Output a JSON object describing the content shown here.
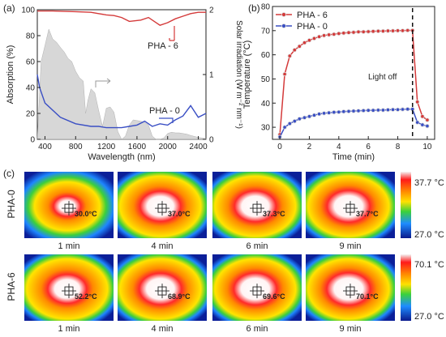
{
  "chart_data": [
    {
      "type": "line",
      "panel": "(a)",
      "xlabel": "Wavelength (nm)",
      "ylabel": "Absorption (%)",
      "ylabel_right": "Solar irradiation (W m⁻² nm⁻¹)",
      "xlim": [
        300,
        2500
      ],
      "ylim": [
        0,
        100
      ],
      "ylim_right": [
        0,
        2
      ],
      "x_ticks": [
        "400",
        "800",
        "1200",
        "1600",
        "2000",
        "2400"
      ],
      "y_ticks": [
        "0",
        "20",
        "40",
        "60",
        "80",
        "100"
      ],
      "y_ticks_right": [
        "0",
        "1",
        "2"
      ],
      "series": [
        {
          "name": "PHA - 6",
          "color": "#d43a3a",
          "x": [
            300,
            500,
            800,
            1000,
            1100,
            1200,
            1300,
            1400,
            1500,
            1650,
            1750,
            1900,
            2000,
            2100,
            2200,
            2300,
            2400,
            2500
          ],
          "y": [
            99,
            99,
            98.5,
            98,
            97,
            96,
            95.5,
            94,
            91,
            92,
            94,
            88,
            90,
            93,
            95,
            97,
            98,
            98
          ]
        },
        {
          "name": "PHA - 0",
          "color": "#3a4fc4",
          "x": [
            300,
            330,
            400,
            600,
            800,
            1000,
            1100,
            1200,
            1400,
            1500,
            1600,
            1700,
            1800,
            1900,
            2000,
            2100,
            2200,
            2300,
            2400,
            2500
          ],
          "y": [
            50,
            40,
            28,
            17,
            12,
            10,
            10,
            9,
            9,
            10,
            11,
            14,
            10,
            12,
            11,
            15,
            18,
            26,
            17,
            20
          ]
        },
        {
          "name": "",
          "color": "#c9c9c9",
          "x": [
            300,
            350,
            400,
            450,
            500,
            550,
            600,
            650,
            700,
            750,
            800,
            850,
            900,
            930,
            960,
            1000,
            1050,
            1100,
            1150,
            1200,
            1250,
            1300,
            1350,
            1400,
            1450,
            1500,
            1550,
            1600,
            1650,
            1700,
            1750,
            1800,
            1850,
            1900,
            1950,
            2000,
            2050,
            2100,
            2150,
            2200,
            2250,
            2300,
            2400,
            2500
          ],
          "y": [
            0.0,
            1.2,
            1.45,
            1.7,
            1.55,
            1.5,
            1.42,
            1.35,
            1.25,
            1.2,
            1.05,
            0.95,
            0.9,
            0.4,
            0.6,
            0.78,
            0.72,
            0.45,
            0.2,
            0.48,
            0.5,
            0.42,
            0.12,
            0.0,
            0.05,
            0.22,
            0.3,
            0.29,
            0.28,
            0.26,
            0.22,
            0.05,
            0.0,
            0.0,
            0.02,
            0.09,
            0.11,
            0.1,
            0.1,
            0.09,
            0.08,
            0.06,
            0.03,
            0.01
          ]
        }
      ],
      "annotations": [
        "PHA - 6",
        "PHA - 0"
      ],
      "grid": false
    },
    {
      "type": "line",
      "panel": "(b)",
      "xlabel": "Time (min)",
      "ylabel": "Temperature (°C)",
      "xlim": [
        -0.5,
        10.5
      ],
      "ylim": [
        25,
        80
      ],
      "x_ticks": [
        "0",
        "2",
        "4",
        "6",
        "8",
        "10"
      ],
      "y_ticks": [
        "30",
        "40",
        "50",
        "60",
        "70",
        "80"
      ],
      "legend": "top-left",
      "annotation": "Light off",
      "light_off_at": 9,
      "series": [
        {
          "name": "PHA - 6",
          "color": "#d43a3a",
          "x": [
            0,
            0.33,
            0.67,
            1,
            1.33,
            1.67,
            2,
            2.33,
            2.67,
            3,
            3.33,
            3.67,
            4,
            4.33,
            4.67,
            5,
            5.33,
            5.67,
            6,
            6.33,
            6.67,
            7,
            7.33,
            7.67,
            8,
            8.33,
            8.67,
            9,
            9.33,
            9.67,
            10
          ],
          "y": [
            27,
            52,
            59.5,
            62,
            63.5,
            65,
            66,
            66.8,
            67.5,
            68,
            68.3,
            68.5,
            68.8,
            69,
            69.2,
            69.3,
            69.5,
            69.5,
            69.6,
            69.7,
            69.8,
            69.8,
            69.9,
            69.9,
            70,
            70,
            70.1,
            70.1,
            40.5,
            34.5,
            33
          ]
        },
        {
          "name": "PHA - 0",
          "color": "#3a4fc4",
          "x": [
            0,
            0.33,
            0.67,
            1,
            1.33,
            1.67,
            2,
            2.33,
            2.67,
            3,
            3.33,
            3.67,
            4,
            4.33,
            4.67,
            5,
            5.33,
            5.67,
            6,
            6.33,
            6.67,
            7,
            7.33,
            7.67,
            8,
            8.33,
            8.67,
            9,
            9.33,
            9.67,
            10
          ],
          "y": [
            26,
            30,
            31.5,
            32.5,
            33.5,
            34,
            34.5,
            35,
            35.5,
            35.8,
            36,
            36.2,
            36.3,
            36.5,
            36.6,
            36.7,
            36.8,
            36.9,
            37,
            37,
            37.1,
            37.1,
            37.2,
            37.3,
            37.3,
            37.4,
            37.5,
            37.5,
            32,
            31,
            30.5
          ]
        }
      ],
      "grid": false
    },
    {
      "type": "heatmap",
      "panel": "(c)",
      "rows": [
        {
          "label": "PHA-0",
          "scale_max": "37.7 °C",
          "scale_min": "27.0 °C",
          "frames": [
            {
              "time": "1 min",
              "temp": "30.0°C",
              "core": 0.15,
              "hot": 0.5
            },
            {
              "time": "4 min",
              "temp": "37.0°C",
              "core": 0.55,
              "hot": 1.0
            },
            {
              "time": "6 min",
              "temp": "37.3°C",
              "core": 0.58,
              "hot": 1.0
            },
            {
              "time": "9 min",
              "temp": "37.7°C",
              "core": 0.62,
              "hot": 1.0
            }
          ]
        },
        {
          "label": "PHA-6",
          "scale_max": "70.1 °C",
          "scale_min": "27.0 °C",
          "frames": [
            {
              "time": "1 min",
              "temp": "52.2°C",
              "core": 0.5,
              "hot": 1.0
            },
            {
              "time": "4 min",
              "temp": "68.9°C",
              "core": 0.6,
              "hot": 1.0
            },
            {
              "time": "6 min",
              "temp": "69.6°C",
              "core": 0.62,
              "hot": 1.0
            },
            {
              "time": "9 min",
              "temp": "70.1°C",
              "core": 0.64,
              "hot": 1.0
            }
          ]
        }
      ]
    }
  ]
}
